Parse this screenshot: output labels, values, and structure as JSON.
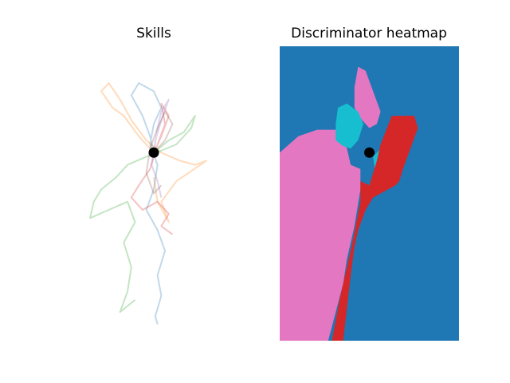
{
  "figure": {
    "panels": [
      {
        "title": "Skills"
      },
      {
        "title": "Discriminator heatmap"
      }
    ]
  },
  "chart_data": [
    {
      "type": "line",
      "title": "Skills",
      "axes": "off",
      "grid": false,
      "origin": [
        0,
        0
      ],
      "xlim": [
        -1.2,
        1.2
      ],
      "ylim": [
        -2.3,
        1.3
      ],
      "series": [
        {
          "color": "#1f77b4",
          "points": [
            [
              0,
              0
            ],
            [
              -0.05,
              0.2
            ],
            [
              -0.15,
              0.45
            ],
            [
              -0.3,
              0.7
            ],
            [
              -0.2,
              0.85
            ],
            [
              0,
              0.75
            ],
            [
              0.1,
              0.55
            ],
            [
              0,
              0.35
            ],
            [
              -0.05,
              0.1
            ],
            [
              0.05,
              -0.15
            ],
            [
              0,
              -0.45
            ],
            [
              -0.1,
              -0.7
            ],
            [
              0.05,
              -0.95
            ],
            [
              0.15,
              -1.2
            ],
            [
              0.05,
              -1.5
            ],
            [
              0.1,
              -1.75
            ],
            [
              0.02,
              -2.0
            ],
            [
              0.05,
              -2.1
            ]
          ]
        },
        {
          "color": "#ff7f0e",
          "points": [
            [
              0,
              0
            ],
            [
              -0.2,
              0.2
            ],
            [
              -0.4,
              0.45
            ],
            [
              -0.55,
              0.55
            ],
            [
              -0.7,
              0.75
            ],
            [
              -0.6,
              0.85
            ],
            [
              -0.45,
              0.65
            ],
            [
              -0.3,
              0.4
            ],
            [
              -0.1,
              0.15
            ],
            [
              0.1,
              0
            ],
            [
              0.35,
              -0.1
            ],
            [
              0.55,
              -0.15
            ],
            [
              0.7,
              -0.1
            ],
            [
              0.3,
              -0.35
            ],
            [
              0.1,
              -0.6
            ],
            [
              0.2,
              -0.85
            ],
            [
              0.05,
              -0.6
            ],
            [
              0,
              -0.3
            ]
          ]
        },
        {
          "color": "#2ca02c",
          "points": [
            [
              0,
              0
            ],
            [
              0.2,
              0.15
            ],
            [
              0.4,
              0.25
            ],
            [
              0.55,
              0.45
            ],
            [
              0.5,
              0.3
            ],
            [
              0.3,
              0.1
            ],
            [
              -0.1,
              -0.05
            ],
            [
              -0.35,
              -0.15
            ],
            [
              -0.5,
              -0.3
            ],
            [
              -0.7,
              -0.45
            ],
            [
              -0.8,
              -0.6
            ],
            [
              -0.85,
              -0.8
            ],
            [
              -0.6,
              -0.7
            ],
            [
              -0.35,
              -0.6
            ],
            [
              -0.25,
              -0.85
            ],
            [
              -0.4,
              -1.1
            ],
            [
              -0.3,
              -1.4
            ],
            [
              -0.35,
              -1.7
            ],
            [
              -0.45,
              -1.95
            ],
            [
              -0.25,
              -1.8
            ]
          ]
        },
        {
          "color": "#d62728",
          "points": [
            [
              0,
              0
            ],
            [
              0.1,
              0.2
            ],
            [
              0.2,
              0.45
            ],
            [
              0.1,
              0.6
            ],
            [
              0.15,
              0.35
            ],
            [
              0.05,
              0.1
            ],
            [
              -0.05,
              -0.2
            ],
            [
              -0.2,
              -0.4
            ],
            [
              -0.3,
              -0.55
            ],
            [
              -0.15,
              -0.7
            ],
            [
              0.05,
              -0.6
            ],
            [
              0.2,
              -0.75
            ],
            [
              0.1,
              -0.9
            ],
            [
              0.25,
              -1.0
            ]
          ]
        },
        {
          "color": "#9467bd",
          "points": [
            [
              0,
              0
            ],
            [
              0.05,
              0.3
            ],
            [
              0.1,
              0.5
            ],
            [
              0.2,
              0.65
            ],
            [
              0.12,
              0.45
            ],
            [
              0.02,
              0.15
            ],
            [
              -0.03,
              -0.15
            ],
            [
              0.05,
              -0.35
            ],
            [
              0.1,
              -0.55
            ]
          ]
        },
        {
          "color": "#8c564b",
          "points": [
            [
              0,
              0
            ],
            [
              0.15,
              0.15
            ],
            [
              0.25,
              0.35
            ],
            [
              0.15,
              0.5
            ],
            [
              0.05,
              0.3
            ],
            [
              -0.05,
              0.05
            ],
            [
              -0.1,
              -0.25
            ],
            [
              0,
              -0.5
            ],
            [
              0.1,
              -0.4
            ]
          ]
        }
      ]
    },
    {
      "type": "heatmap",
      "title": "Discriminator heatmap",
      "axes": "off",
      "grid": false,
      "origin": [
        0,
        0
      ],
      "xlim": [
        -1.2,
        1.2
      ],
      "ylim": [
        -2.3,
        1.3
      ],
      "background": "#1f77b4",
      "regions": [
        {
          "color": "#e377c2",
          "polygon": [
            [
              -1.2,
              0.0
            ],
            [
              -0.95,
              0.2
            ],
            [
              -0.7,
              0.28
            ],
            [
              -0.45,
              0.28
            ],
            [
              -0.3,
              0.05
            ],
            [
              -0.25,
              -0.15
            ],
            [
              -0.12,
              -0.2
            ],
            [
              -0.12,
              -0.45
            ],
            [
              -0.2,
              -0.9
            ],
            [
              -0.3,
              -1.3
            ],
            [
              -0.35,
              -1.6
            ],
            [
              -0.55,
              -2.3
            ],
            [
              -1.2,
              -2.3
            ]
          ]
        },
        {
          "color": "#e377c2",
          "polygon": [
            [
              -0.15,
              1.05
            ],
            [
              -0.05,
              1.0
            ],
            [
              0.05,
              0.75
            ],
            [
              0.15,
              0.5
            ],
            [
              0.1,
              0.35
            ],
            [
              0,
              0.3
            ],
            [
              -0.1,
              0.4
            ],
            [
              -0.2,
              0.55
            ],
            [
              -0.2,
              0.8
            ]
          ]
        },
        {
          "color": "#17becf",
          "polygon": [
            [
              -0.42,
              0.55
            ],
            [
              -0.3,
              0.6
            ],
            [
              -0.15,
              0.5
            ],
            [
              -0.08,
              0.35
            ],
            [
              -0.15,
              0.15
            ],
            [
              -0.25,
              0.05
            ],
            [
              -0.35,
              0.08
            ],
            [
              -0.45,
              0.15
            ],
            [
              -0.45,
              0.35
            ]
          ]
        },
        {
          "color": "#17becf",
          "polygon": [
            [
              0.05,
              -0.05
            ],
            [
              0.15,
              0.05
            ],
            [
              0.15,
              -0.15
            ],
            [
              0.08,
              -0.25
            ]
          ]
        },
        {
          "color": "#d62728",
          "polygon": [
            [
              0.3,
              0.45
            ],
            [
              0.6,
              0.45
            ],
            [
              0.65,
              0.3
            ],
            [
              0.45,
              -0.2
            ],
            [
              0.4,
              -0.35
            ],
            [
              0.35,
              -0.4
            ],
            [
              0.25,
              -0.45
            ],
            [
              0.05,
              -0.55
            ],
            [
              -0.05,
              -0.7
            ],
            [
              -0.15,
              -0.95
            ],
            [
              -0.2,
              -1.15
            ],
            [
              -0.25,
              -1.5
            ],
            [
              -0.35,
              -2.3
            ],
            [
              -0.5,
              -2.3
            ],
            [
              -0.4,
              -1.8
            ],
            [
              -0.25,
              -1.2
            ],
            [
              -0.12,
              -0.6
            ],
            [
              -0.12,
              -0.35
            ],
            [
              0,
              -0.4
            ],
            [
              0.05,
              -0.25
            ],
            [
              0.1,
              -0.1
            ],
            [
              0.15,
              0.1
            ]
          ]
        }
      ]
    }
  ]
}
